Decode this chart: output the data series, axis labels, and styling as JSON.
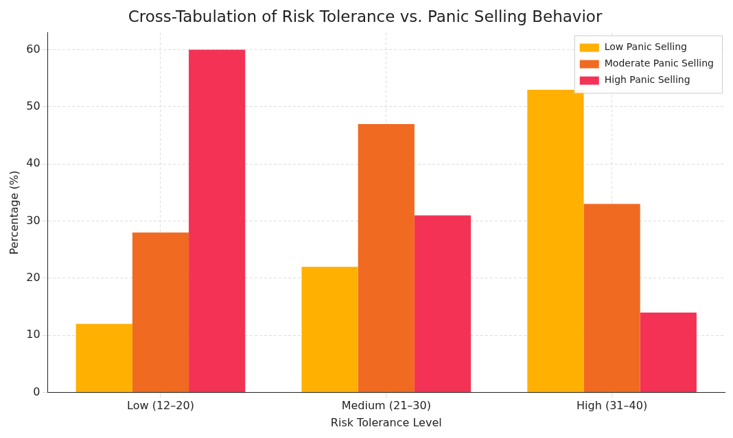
{
  "chart_data": {
    "type": "bar",
    "title": "Cross-Tabulation of Risk Tolerance vs. Panic Selling Behavior",
    "xlabel": "Risk Tolerance Level",
    "ylabel": "Percentage (%)",
    "categories": [
      "Low (12–20)",
      "Medium (21–30)",
      "High (31–40)"
    ],
    "series": [
      {
        "name": "Low Panic Selling",
        "color": "#ffb000",
        "values": [
          12,
          22,
          53
        ]
      },
      {
        "name": "Moderate Panic Selling",
        "color": "#f06a22",
        "values": [
          28,
          47,
          33
        ]
      },
      {
        "name": "High Panic Selling",
        "color": "#f43256",
        "values": [
          60,
          31,
          14
        ]
      }
    ],
    "ylim": [
      0,
      63
    ],
    "yticks": [
      0,
      10,
      20,
      30,
      40,
      50,
      60
    ],
    "grid": true,
    "legend": "top right"
  }
}
